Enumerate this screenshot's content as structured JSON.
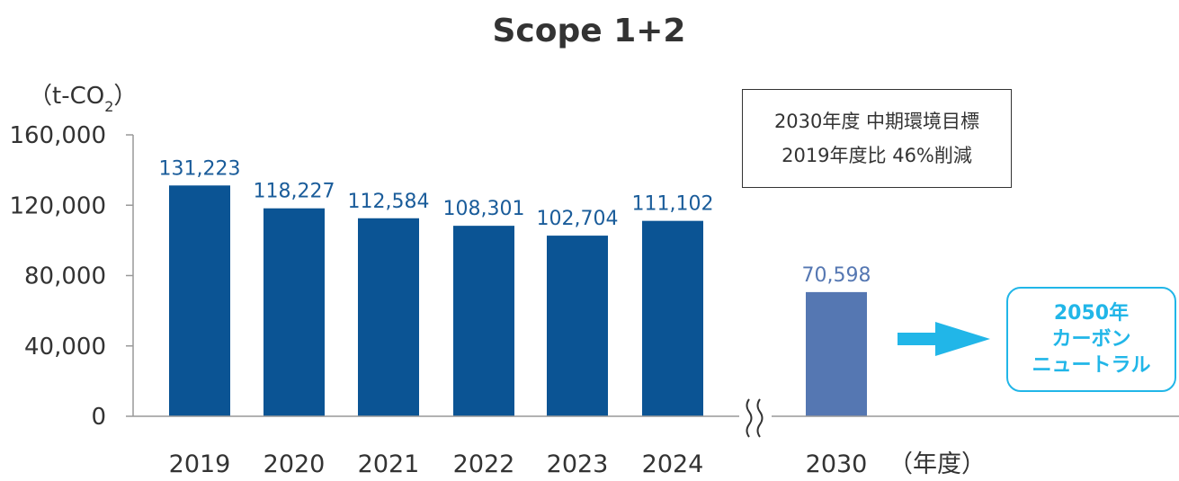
{
  "chart_data": {
    "type": "bar",
    "title": "Scope 1+2",
    "unit": {
      "main": "（t-CO",
      "sub": "2",
      "close": "）"
    },
    "categories": [
      "2019",
      "2020",
      "2021",
      "2022",
      "2023",
      "2024",
      "2030"
    ],
    "values": [
      131223,
      118227,
      112584,
      108301,
      102704,
      111102,
      70598
    ],
    "value_labels": [
      "131,223",
      "118,227",
      "112,584",
      "108,301",
      "102,704",
      "111,102",
      "70,598"
    ],
    "ylim": [
      0,
      160000
    ],
    "yticks": [
      "0",
      "40,000",
      "80,000",
      "120,000",
      "160,000"
    ],
    "ytick_values": [
      0,
      40000,
      80000,
      120000,
      160000
    ],
    "xlabel": "（年度）",
    "axis_break_between": [
      "2024",
      "2030"
    ],
    "colors": {
      "actual": "#0b5494",
      "target": "#5577b2",
      "arrow": "#21b6e8"
    }
  },
  "note": {
    "line1": "2030年度 中期環境目標",
    "line2": "2019年度比 46%削減"
  },
  "goal": {
    "line1": "2050年",
    "line2": "カーボン",
    "line3": "ニュートラル"
  }
}
